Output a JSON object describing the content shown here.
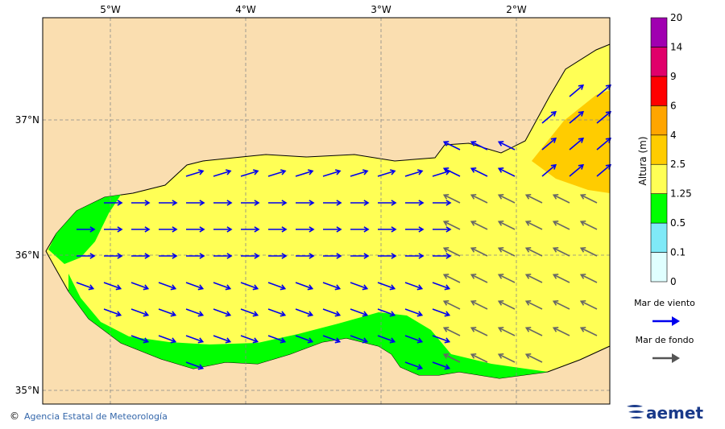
{
  "map": {
    "lon_labels": [
      "5°W",
      "4°W",
      "3°W",
      "2°W"
    ],
    "lat_labels": [
      "37°N",
      "36°N",
      "35°N"
    ],
    "colorbar": {
      "title": "Altura (m)",
      "levels": [
        0,
        0.1,
        0.5,
        1.25,
        2.5,
        4,
        6,
        9,
        14,
        20
      ],
      "colors": [
        "#e0ffff",
        "#7fe9f7",
        "#00ff00",
        "#ffff55",
        "#ffcc00",
        "#ffa500",
        "#ff0000",
        "#e0006a",
        "#a000b0"
      ]
    },
    "legend": [
      {
        "label": "Mar de viento",
        "color": "#0000ee"
      },
      {
        "label": "Mar de fondo",
        "color": "#555555"
      }
    ],
    "footer": {
      "credit": "Agencia Estatal de Meteorología",
      "logo": "aemet"
    }
  }
}
